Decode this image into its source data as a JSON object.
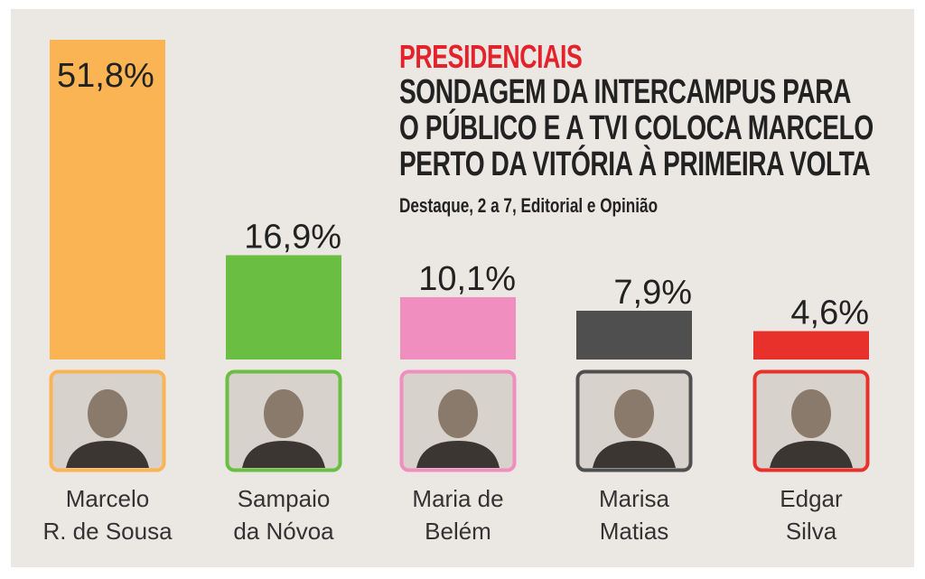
{
  "headline": {
    "kicker": "PRESIDENCIAIS",
    "title_lines": [
      "SONDAGEM DA INTERCAMPUS PARA",
      "O PÚBLICO E A TVI COLOCA MARCELO",
      "PERTO DA VITÓRIA À PRIMEIRA VOLTA"
    ],
    "subtitle": "Destaque, 2 a 7, Editorial e Opinião"
  },
  "chart_data": {
    "type": "bar",
    "unit": "%",
    "categories": [
      "Marcelo R. de Sousa",
      "Sampaio da Nóvoa",
      "Maria de Belém",
      "Marisa Matias",
      "Edgar Silva"
    ],
    "values": [
      51.8,
      16.9,
      10.1,
      7.9,
      4.6
    ],
    "value_labels": [
      "51,8%",
      "16,9%",
      "10,1%",
      "7,9%",
      "4,6%"
    ],
    "name_lines": [
      [
        "Marcelo",
        "R. de Sousa"
      ],
      [
        "Sampaio",
        "da Nóvoa"
      ],
      [
        "Maria de",
        "Belém"
      ],
      [
        "Marisa",
        "Matias"
      ],
      [
        "Edgar",
        "Silva"
      ]
    ],
    "colors": [
      "#fbb454",
      "#6abf43",
      "#f08fbf",
      "#4f4f4f",
      "#e9312c"
    ],
    "icons": [
      "candidate-photo-icon",
      "candidate-photo-icon",
      "candidate-photo-icon",
      "candidate-photo-icon",
      "candidate-photo-icon"
    ],
    "grid": false,
    "legend": "none"
  }
}
